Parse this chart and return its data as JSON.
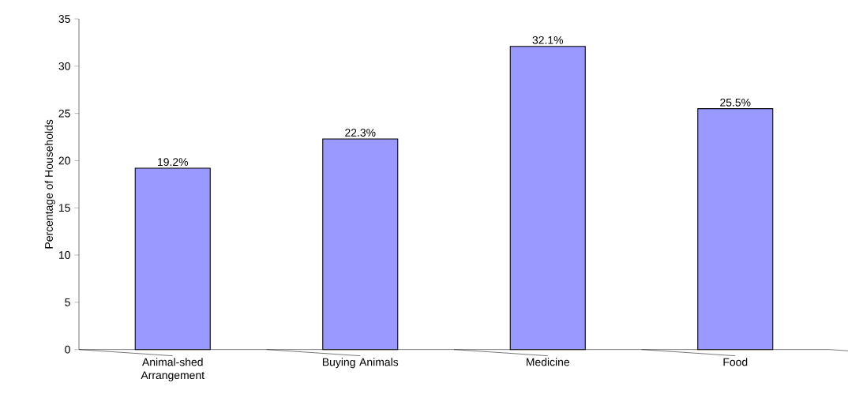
{
  "chart_data": {
    "type": "bar",
    "ylabel": "Percentage of Households",
    "categories": [
      "Animal-shed Arrangement",
      "Buying Animals",
      "Medicine",
      "Food"
    ],
    "values": [
      19.2,
      22.3,
      32.1,
      25.5
    ],
    "color": "#9999ff",
    "value_labels": [
      "19.2%",
      "22.3%",
      "32.1%",
      "25.5%"
    ],
    "ylim": [
      0,
      35
    ],
    "yticks": [
      0,
      5,
      10,
      15,
      20,
      25,
      30,
      35
    ]
  }
}
